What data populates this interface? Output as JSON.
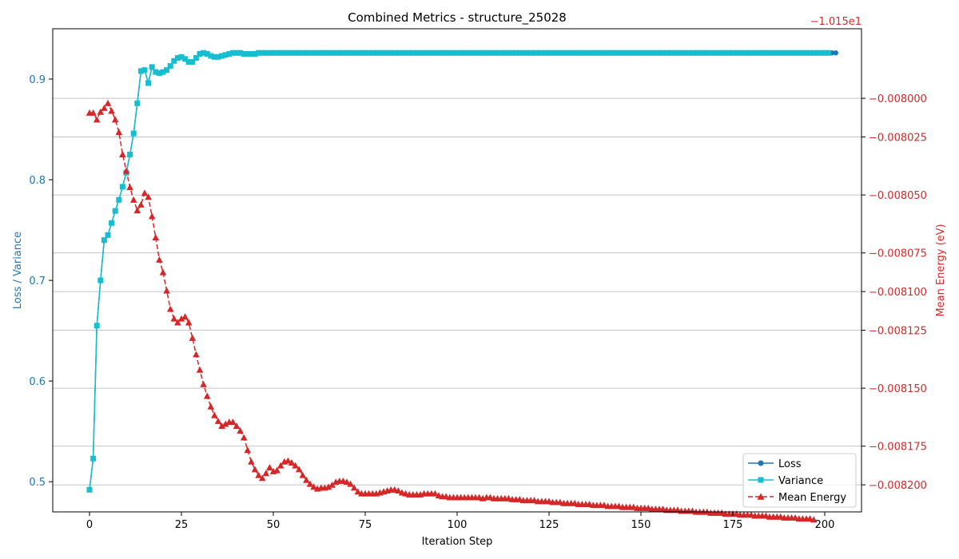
{
  "chart_data": {
    "type": "line",
    "title": "Combined Metrics - structure_25028",
    "xlabel": "Iteration Step",
    "ylabel_left": "Loss / Variance",
    "ylabel_right": "Mean Energy (eV)",
    "right_offset_label": "−1.015e1",
    "xlim": [
      -10,
      210
    ],
    "ylim_left": [
      0.47,
      0.95
    ],
    "ylim_right": [
      -0.008214,
      -0.007964
    ],
    "x_ticks": [
      0,
      25,
      50,
      75,
      100,
      125,
      150,
      175,
      200
    ],
    "x_tick_labels": [
      "0",
      "25",
      "50",
      "75",
      "100",
      "125",
      "150",
      "175",
      "200"
    ],
    "y_left_ticks": [
      0.5,
      0.6,
      0.7,
      0.8,
      0.9
    ],
    "y_left_tick_labels": [
      "0.5",
      "0.6",
      "0.7",
      "0.8",
      "0.9"
    ],
    "y_right_ticks": [
      -0.0082,
      -0.00818,
      -0.00815,
      -0.00812,
      -0.0081,
      -0.00808,
      -0.00805,
      -0.00802,
      -0.008
    ],
    "y_right_tick_labels": [
      "−0.008200",
      "−0.008175",
      "−0.008150",
      "−0.008125",
      "−0.008100",
      "−0.008075",
      "−0.008050",
      "−0.008025",
      "−0.008000"
    ],
    "grid": "horizontal lines on right axis ticks",
    "legend_position": "bottom-right",
    "colors": {
      "left_axis": "#1f77b4",
      "right_axis": "#d62728",
      "loss": "#1f77b4",
      "variance": "#17becf",
      "energy": "#d62728",
      "grid": "#b0b0b0"
    },
    "legend": [
      {
        "label": "Loss",
        "color": "#1f77b4",
        "style": "solid",
        "marker": "circle"
      },
      {
        "label": "Variance",
        "color": "#17becf",
        "style": "solid",
        "marker": "square"
      },
      {
        "label": "Mean Energy",
        "color": "#d62728",
        "style": "dashed",
        "marker": "triangle"
      }
    ],
    "series": [
      {
        "name": "Loss",
        "axis": "left",
        "x_start": 0,
        "x_step": 1,
        "values": [
          0.492,
          0.523,
          0.655,
          0.7,
          0.74,
          0.745,
          0.757,
          0.769,
          0.78,
          0.793,
          0.807,
          0.825,
          0.846,
          0.876,
          0.908,
          0.909,
          0.896,
          0.912,
          0.907,
          0.906,
          0.907,
          0.909,
          0.913,
          0.918,
          0.921,
          0.922,
          0.92,
          0.917,
          0.917,
          0.921,
          0.925,
          0.926,
          0.925,
          0.923,
          0.922,
          0.922,
          0.923,
          0.924,
          0.925,
          0.926,
          0.926,
          0.926,
          0.925,
          0.925,
          0.925,
          0.925,
          0.926,
          0.926,
          0.926,
          0.926,
          0.926,
          0.926,
          0.926,
          0.926,
          0.926,
          0.926,
          0.926,
          0.926,
          0.926,
          0.926,
          0.926,
          0.926,
          0.926,
          0.926,
          0.926,
          0.926,
          0.926,
          0.926,
          0.926,
          0.926,
          0.926,
          0.926,
          0.926,
          0.926,
          0.926,
          0.926,
          0.926,
          0.926,
          0.926,
          0.926,
          0.926,
          0.926,
          0.926,
          0.926,
          0.926,
          0.926,
          0.926,
          0.926,
          0.926,
          0.926,
          0.926,
          0.926,
          0.926,
          0.926,
          0.926,
          0.926,
          0.926,
          0.926,
          0.926,
          0.926,
          0.926,
          0.926,
          0.926,
          0.926,
          0.926,
          0.926,
          0.926,
          0.926,
          0.926,
          0.926,
          0.926,
          0.926,
          0.926,
          0.926,
          0.926,
          0.926,
          0.926,
          0.926,
          0.926,
          0.926,
          0.926,
          0.926,
          0.926,
          0.926,
          0.926,
          0.926,
          0.926,
          0.926,
          0.926,
          0.926,
          0.926,
          0.926,
          0.926,
          0.926,
          0.926,
          0.926,
          0.926,
          0.926,
          0.926,
          0.926,
          0.926,
          0.926,
          0.926,
          0.926,
          0.926,
          0.926,
          0.926,
          0.926,
          0.926,
          0.926,
          0.926,
          0.926,
          0.926,
          0.926,
          0.926,
          0.926,
          0.926,
          0.926,
          0.926,
          0.926,
          0.926,
          0.926,
          0.926,
          0.926,
          0.926,
          0.926,
          0.926,
          0.926,
          0.926,
          0.926,
          0.926,
          0.926,
          0.926,
          0.926,
          0.926,
          0.926,
          0.926,
          0.926,
          0.926,
          0.926,
          0.926,
          0.926,
          0.926,
          0.926,
          0.926,
          0.926,
          0.926,
          0.926,
          0.926,
          0.926,
          0.926,
          0.926,
          0.926,
          0.926,
          0.926,
          0.926,
          0.926,
          0.926,
          0.926,
          0.926,
          0.926,
          0.926,
          0.926,
          0.926
        ]
      },
      {
        "name": "Variance",
        "axis": "left",
        "x_start": 0,
        "x_step": 1,
        "values": [
          0.492,
          0.523,
          0.655,
          0.7,
          0.74,
          0.745,
          0.757,
          0.769,
          0.78,
          0.793,
          0.807,
          0.825,
          0.846,
          0.876,
          0.908,
          0.909,
          0.896,
          0.912,
          0.907,
          0.906,
          0.907,
          0.909,
          0.913,
          0.918,
          0.921,
          0.922,
          0.92,
          0.917,
          0.917,
          0.921,
          0.925,
          0.926,
          0.925,
          0.923,
          0.922,
          0.922,
          0.923,
          0.924,
          0.925,
          0.926,
          0.926,
          0.926,
          0.925,
          0.925,
          0.925,
          0.925,
          0.926,
          0.926,
          0.926,
          0.926,
          0.926,
          0.926,
          0.926,
          0.926,
          0.926,
          0.926,
          0.926,
          0.926,
          0.926,
          0.926,
          0.926,
          0.926,
          0.926,
          0.926,
          0.926,
          0.926,
          0.926,
          0.926,
          0.926,
          0.926,
          0.926,
          0.926,
          0.926,
          0.926,
          0.926,
          0.926,
          0.926,
          0.926,
          0.926,
          0.926,
          0.926,
          0.926,
          0.926,
          0.926,
          0.926,
          0.926,
          0.926,
          0.926,
          0.926,
          0.926,
          0.926,
          0.926,
          0.926,
          0.926,
          0.926,
          0.926,
          0.926,
          0.926,
          0.926,
          0.926,
          0.926,
          0.926,
          0.926,
          0.926,
          0.926,
          0.926,
          0.926,
          0.926,
          0.926,
          0.926,
          0.926,
          0.926,
          0.926,
          0.926,
          0.926,
          0.926,
          0.926,
          0.926,
          0.926,
          0.926,
          0.926,
          0.926,
          0.926,
          0.926,
          0.926,
          0.926,
          0.926,
          0.926,
          0.926,
          0.926,
          0.926,
          0.926,
          0.926,
          0.926,
          0.926,
          0.926,
          0.926,
          0.926,
          0.926,
          0.926,
          0.926,
          0.926,
          0.926,
          0.926,
          0.926,
          0.926,
          0.926,
          0.926,
          0.926,
          0.926,
          0.926,
          0.926,
          0.926,
          0.926,
          0.926,
          0.926,
          0.926,
          0.926,
          0.926,
          0.926,
          0.926,
          0.926,
          0.926,
          0.926,
          0.926,
          0.926,
          0.926,
          0.926,
          0.926,
          0.926,
          0.926,
          0.926,
          0.926,
          0.926,
          0.926,
          0.926,
          0.926,
          0.926,
          0.926,
          0.926,
          0.926,
          0.926,
          0.926,
          0.926,
          0.926,
          0.926,
          0.926,
          0.926,
          0.926,
          0.926,
          0.926,
          0.926,
          0.926,
          0.926,
          0.926,
          0.926,
          0.926,
          0.926,
          0.926,
          0.926,
          0.926,
          0.926
        ]
      },
      {
        "name": "Mean Energy",
        "axis": "right",
        "x_start": 0,
        "x_step": 1,
        "values": [
          -0.0080075,
          -0.0080075,
          -0.008011,
          -0.008007,
          -0.008005,
          -0.0080025,
          -0.0080065,
          -0.008011,
          -0.0080175,
          -0.008029,
          -0.0080375,
          -0.008046,
          -0.0080525,
          -0.008058,
          -0.008055,
          -0.008049,
          -0.008051,
          -0.008061,
          -0.008072,
          -0.0080835,
          -0.00809,
          -0.0080995,
          -0.008109,
          -0.008114,
          -0.008116,
          -0.008114,
          -0.008113,
          -0.008116,
          -0.008124,
          -0.0081325,
          -0.0081405,
          -0.008148,
          -0.008154,
          -0.0081595,
          -0.008164,
          -0.008167,
          -0.0081695,
          -0.0081685,
          -0.0081675,
          -0.0081675,
          -0.0081695,
          -0.008172,
          -0.0081755,
          -0.008182,
          -0.008188,
          -0.008192,
          -0.008195,
          -0.0081965,
          -0.008194,
          -0.008191,
          -0.008193,
          -0.0081925,
          -0.00819,
          -0.008188,
          -0.0081875,
          -0.0081885,
          -0.00819,
          -0.008192,
          -0.008195,
          -0.0081975,
          -0.0081995,
          -0.008201,
          -0.008202,
          -0.0082015,
          -0.0082015,
          -0.008201,
          -0.0082,
          -0.0081985,
          -0.008198,
          -0.008198,
          -0.0081985,
          -0.0081995,
          -0.0082015,
          -0.0082035,
          -0.0082045,
          -0.0082045,
          -0.0082045,
          -0.0082045,
          -0.0082045,
          -0.008204,
          -0.0082035,
          -0.008203,
          -0.0082025,
          -0.0082025,
          -0.008203,
          -0.008204,
          -0.0082045,
          -0.008205,
          -0.008205,
          -0.008205,
          -0.008205,
          -0.0082045,
          -0.0082045,
          -0.0082045,
          -0.0082045,
          -0.0082055,
          -0.008206,
          -0.008206,
          -0.0082065,
          -0.0082065,
          -0.0082065,
          -0.0082065,
          -0.0082065,
          -0.0082065,
          -0.0082065,
          -0.0082065,
          -0.0082065,
          -0.008207,
          -0.0082065,
          -0.0082065,
          -0.008207,
          -0.008207,
          -0.008207,
          -0.008207,
          -0.008207,
          -0.0082075,
          -0.0082075,
          -0.0082075,
          -0.008208,
          -0.008208,
          -0.008208,
          -0.008208,
          -0.0082085,
          -0.0082085,
          -0.0082085,
          -0.0082085,
          -0.008209,
          -0.008209,
          -0.008209,
          -0.0082095,
          -0.0082095,
          -0.0082095,
          -0.0082095,
          -0.00821,
          -0.00821,
          -0.00821,
          -0.00821,
          -0.0082105,
          -0.0082105,
          -0.0082105,
          -0.0082105,
          -0.008211,
          -0.008211,
          -0.008211,
          -0.008211,
          -0.0082115,
          -0.0082115,
          -0.0082115,
          -0.0082115,
          -0.008212,
          -0.008212,
          -0.008212,
          -0.008212,
          -0.0082125,
          -0.0082125,
          -0.0082125,
          -0.0082125,
          -0.008213,
          -0.008213,
          -0.008213,
          -0.008213,
          -0.0082135,
          -0.0082135,
          -0.0082135,
          -0.0082135,
          -0.008214,
          -0.008214,
          -0.008214,
          -0.008214,
          -0.0082145,
          -0.0082145,
          -0.0082145,
          -0.0082145,
          -0.008215,
          -0.008215,
          -0.008215,
          -0.008215,
          -0.0082155,
          -0.0082155,
          -0.0082155,
          -0.0082155,
          -0.008216,
          -0.008216,
          -0.008216,
          -0.008216,
          -0.0082165,
          -0.0082165,
          -0.0082165,
          -0.0082165,
          -0.008217,
          -0.008217,
          -0.008217,
          -0.008217,
          -0.0082175,
          -0.0082175,
          -0.0082175,
          -0.0082175,
          -0.008218
        ]
      }
    ]
  }
}
